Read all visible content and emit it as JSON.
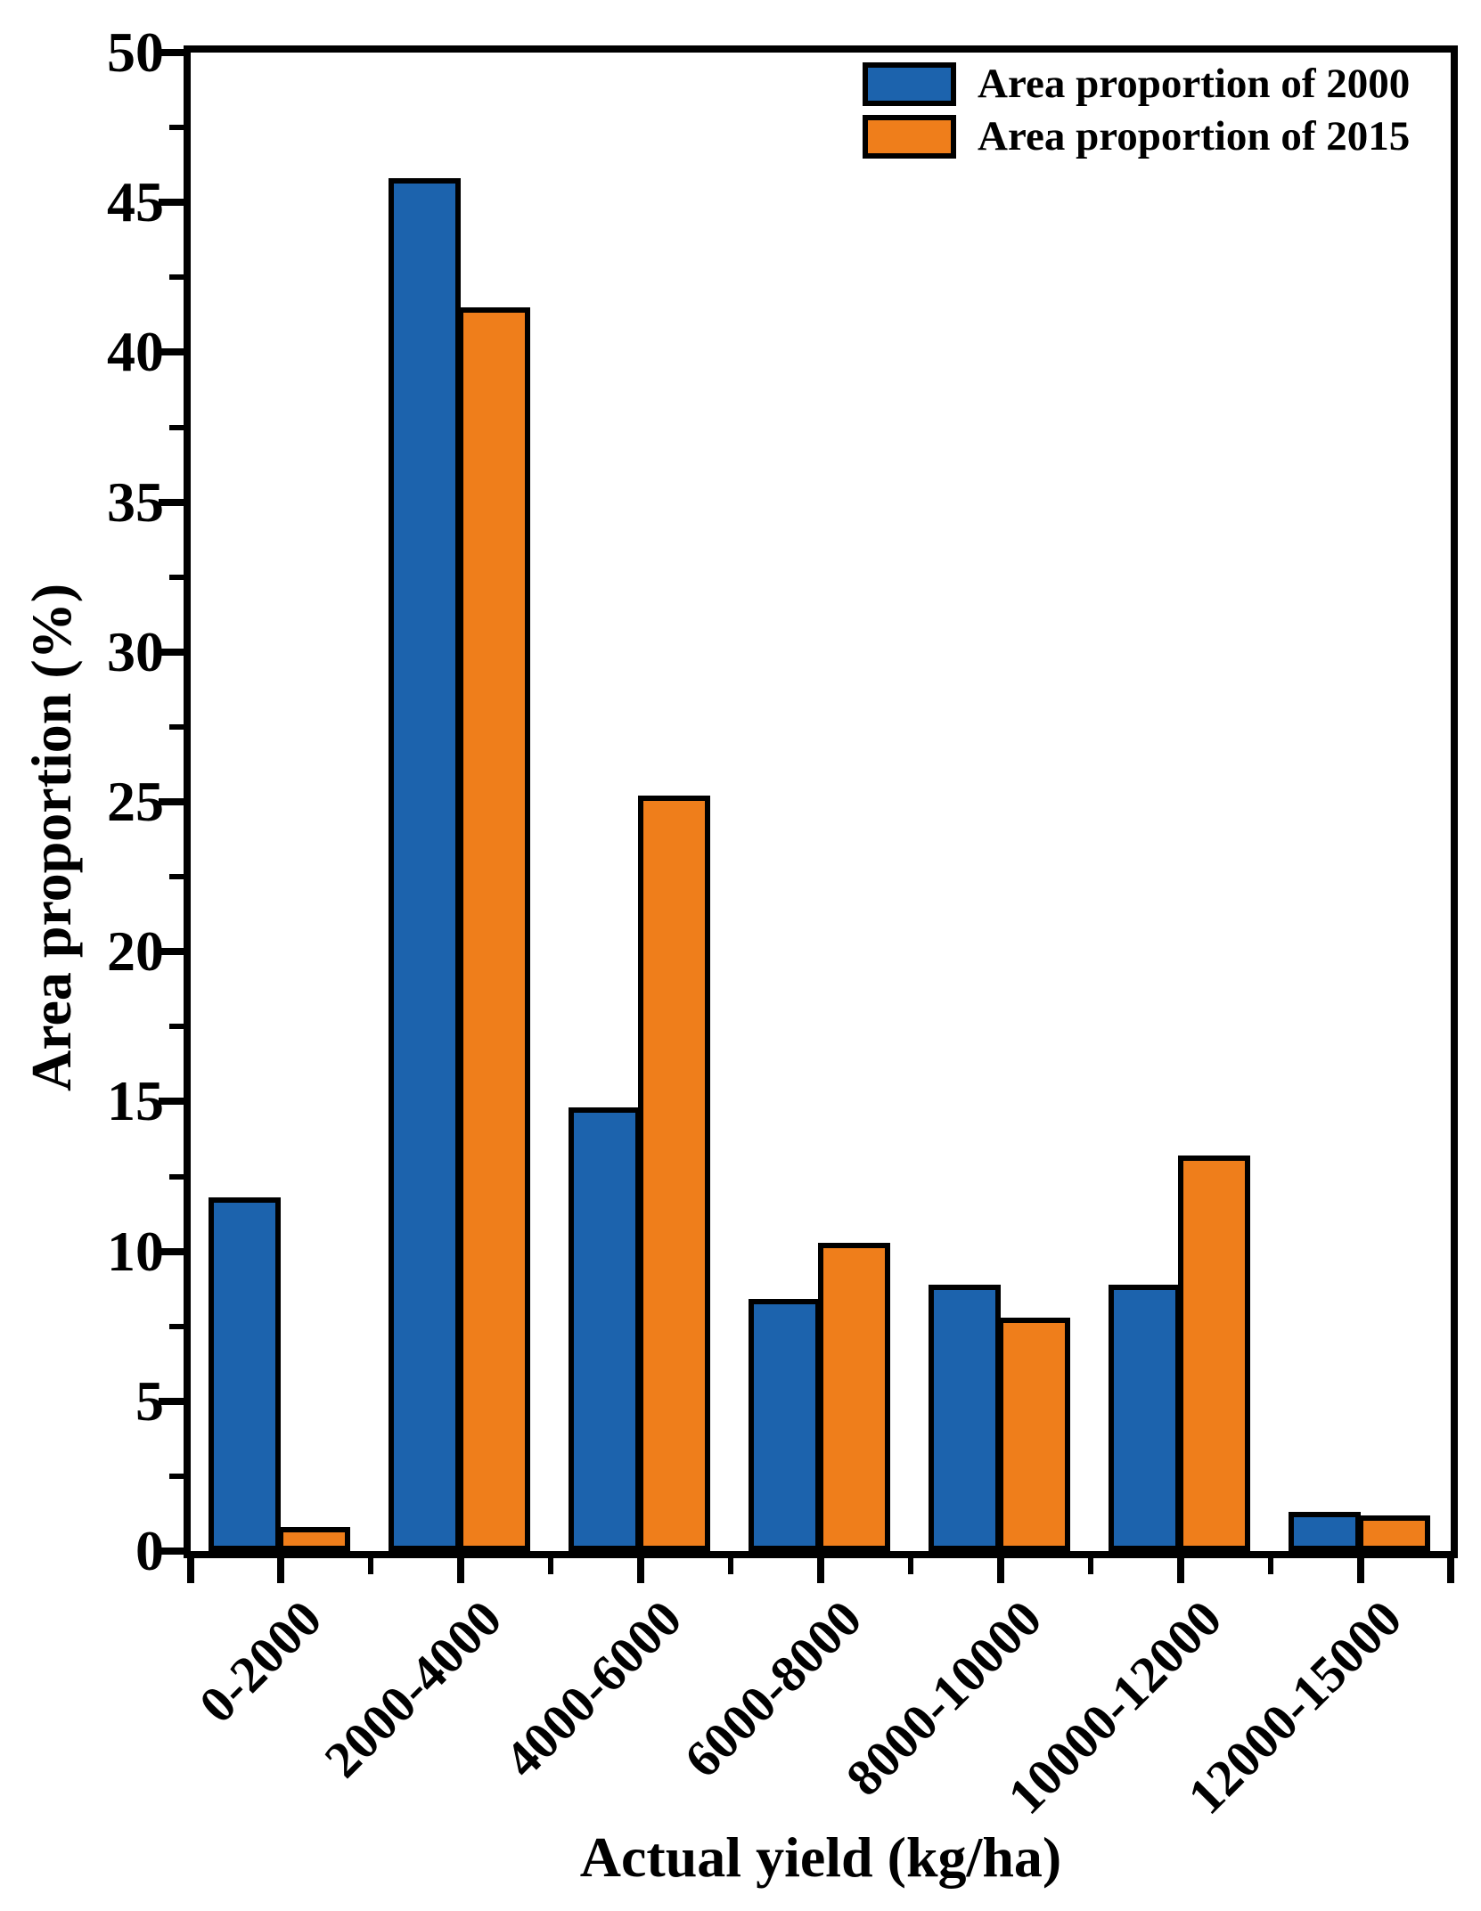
{
  "figure": {
    "background": "#ffffff",
    "axis_color": "#000000"
  },
  "chart_data": {
    "type": "bar",
    "title": "",
    "xlabel": "Actual yield (kg/ha)",
    "ylabel": "Area proportion (%)",
    "categories": [
      "0-2000",
      "2000-4000",
      "4000-6000",
      "6000-8000",
      "8000-10000",
      "10000-12000",
      "12000-15000"
    ],
    "series": [
      {
        "name": "Area proportion of 2000",
        "color": "#1c63ad",
        "values": [
          11.8,
          45.8,
          14.8,
          8.4,
          8.9,
          8.9,
          1.3
        ]
      },
      {
        "name": "Area proportion of 2015",
        "color": "#ef7e1b",
        "values": [
          0.8,
          41.5,
          25.2,
          10.3,
          7.8,
          13.2,
          1.2
        ]
      }
    ],
    "ylim": [
      0,
      50
    ],
    "y_tick_labels": [
      "0",
      "5",
      "10",
      "15",
      "20",
      "25",
      "30",
      "35",
      "40",
      "45",
      "50"
    ],
    "y_major_step": 5,
    "y_minor_step": 2.5,
    "bar_outline_color": "#000000",
    "grid": false,
    "legend_position": "top-right-inside"
  }
}
